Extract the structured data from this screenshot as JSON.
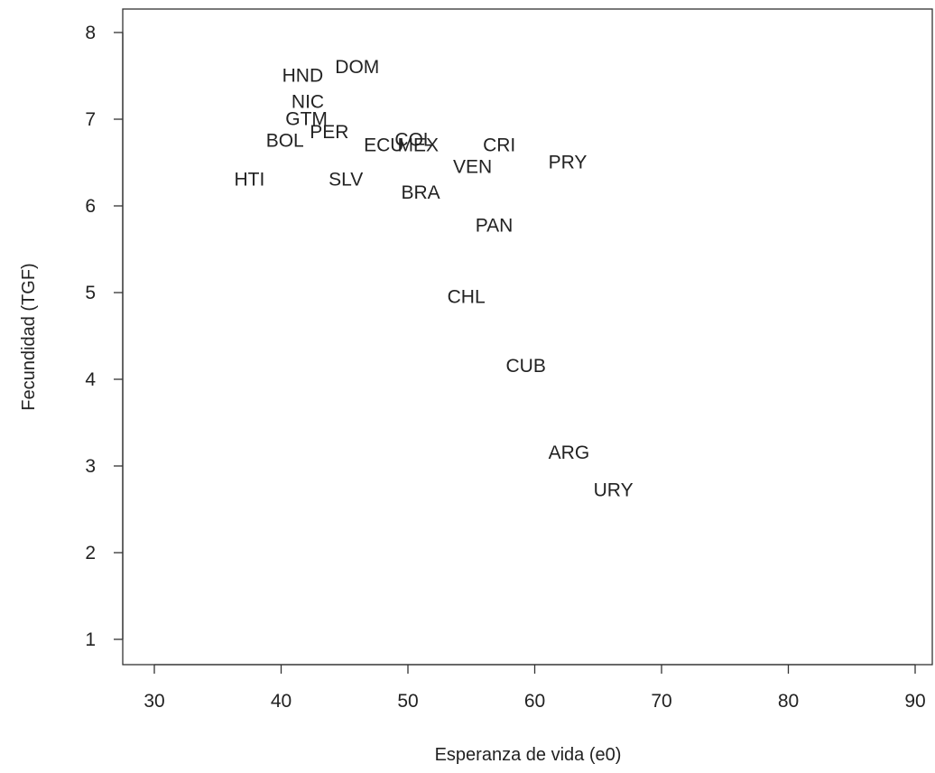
{
  "chart_data": {
    "type": "scatter",
    "title": "",
    "xlabel": "Esperanza de vida (e0)",
    "ylabel": "Fecundidad (TGF)",
    "xlim": [
      27.5,
      92.5
    ],
    "ylim": [
      0.75,
      8.25
    ],
    "xticks": [
      30,
      40,
      50,
      60,
      70,
      80,
      90
    ],
    "yticks": [
      1,
      2,
      3,
      4,
      5,
      6,
      7,
      8
    ],
    "grid": false,
    "legend": "none",
    "marker": "text-label",
    "points": [
      {
        "label": "HND",
        "x": 41.7,
        "y": 7.5
      },
      {
        "label": "DOM",
        "x": 46.0,
        "y": 7.6
      },
      {
        "label": "NIC",
        "x": 42.1,
        "y": 7.2
      },
      {
        "label": "GTM",
        "x": 42.0,
        "y": 7.0
      },
      {
        "label": "PER",
        "x": 43.8,
        "y": 6.85
      },
      {
        "label": "BOL",
        "x": 40.3,
        "y": 6.75
      },
      {
        "label": "ECU",
        "x": 48.1,
        "y": 6.7
      },
      {
        "label": "COL",
        "x": 50.5,
        "y": 6.76
      },
      {
        "label": "MEX",
        "x": 50.8,
        "y": 6.7
      },
      {
        "label": "CRI",
        "x": 57.2,
        "y": 6.7
      },
      {
        "label": "VEN",
        "x": 55.1,
        "y": 6.45
      },
      {
        "label": "PRY",
        "x": 62.6,
        "y": 6.5
      },
      {
        "label": "HTI",
        "x": 37.5,
        "y": 6.3
      },
      {
        "label": "SLV",
        "x": 45.1,
        "y": 6.3
      },
      {
        "label": "BRA",
        "x": 51.0,
        "y": 6.15
      },
      {
        "label": "PAN",
        "x": 56.8,
        "y": 5.77
      },
      {
        "label": "CHL",
        "x": 54.6,
        "y": 4.95
      },
      {
        "label": "CUB",
        "x": 59.3,
        "y": 4.15
      },
      {
        "label": "ARG",
        "x": 62.7,
        "y": 3.15
      },
      {
        "label": "URY",
        "x": 66.2,
        "y": 2.72
      }
    ]
  }
}
